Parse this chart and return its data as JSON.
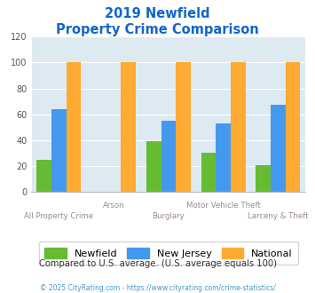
{
  "title_line1": "2019 Newfield",
  "title_line2": "Property Crime Comparison",
  "categories": [
    "All Property Crime",
    "Arson",
    "Burglary",
    "Motor Vehicle Theft",
    "Larceny & Theft"
  ],
  "newfield": [
    25,
    0,
    39,
    30,
    21
  ],
  "new_jersey": [
    64,
    0,
    55,
    53,
    67
  ],
  "national": [
    100,
    100,
    100,
    100,
    100
  ],
  "color_newfield": "#66bb33",
  "color_new_jersey": "#4499ee",
  "color_national": "#ffaa33",
  "bg_color": "#ddeaf2",
  "title_color": "#1166cc",
  "xlabel_color": "#998899",
  "ylabel_color": "#555555",
  "note_text": "Compared to U.S. average. (U.S. average equals 100)",
  "note_color": "#333333",
  "footer_text": "© 2025 CityRating.com - https://www.cityrating.com/crime-statistics/",
  "footer_color": "#4499cc",
  "ylim": [
    0,
    120
  ],
  "yticks": [
    0,
    20,
    40,
    60,
    80,
    100,
    120
  ],
  "bar_width": 0.27,
  "legend_labels": [
    "Newfield",
    "New Jersey",
    "National"
  ]
}
